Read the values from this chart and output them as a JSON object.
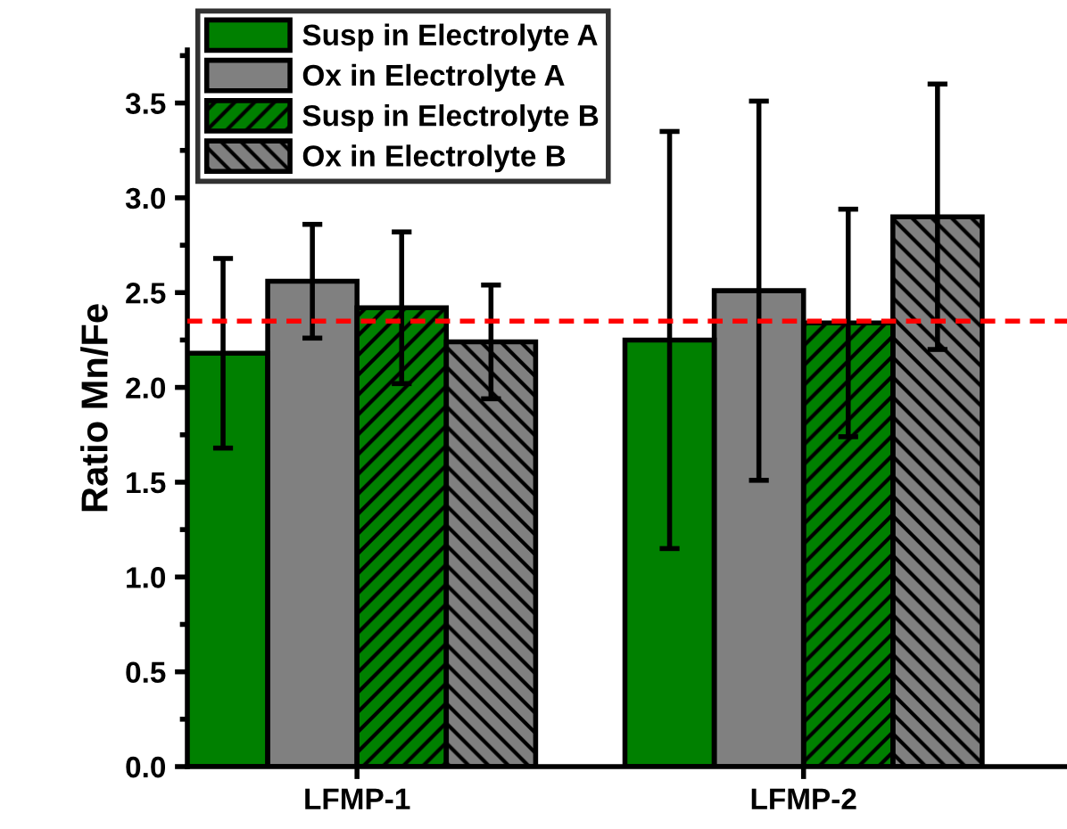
{
  "chart_data": {
    "type": "bar",
    "ylabel": "Ratio Mn/Fe",
    "categories": [
      "LFMP-1",
      "LFMP-2"
    ],
    "series": [
      {
        "name": "Susp in Electrolyte A",
        "color": "#008000",
        "values": [
          2.18,
          2.25
        ],
        "errors": [
          0.5,
          1.1
        ]
      },
      {
        "name": "Ox in Electrolyte A",
        "color": "#808080",
        "values": [
          2.56,
          2.51
        ],
        "errors": [
          0.3,
          1.0
        ]
      },
      {
        "name": "Susp in Electrolyte B",
        "color": "#008000",
        "values": [
          2.42,
          2.34
        ],
        "errors": [
          0.4,
          0.6
        ]
      },
      {
        "name": "Ox in Electrolyte B",
        "color": "#808080",
        "values": [
          2.24,
          2.9
        ],
        "errors": [
          0.3,
          0.7
        ]
      }
    ],
    "ylim": [
      0,
      3.78
    ],
    "yticks": [
      {
        "value": 0,
        "label": "0.0"
      },
      0.5,
      {
        "value": 1,
        "label": "1.0"
      },
      1.5,
      {
        "value": 2,
        "label": "2.0"
      },
      2.5,
      {
        "value": 3,
        "label": "3.0"
      },
      3.5
    ],
    "ref_lines": [
      {
        "axis": "y",
        "value": 2.35,
        "color": "#ff0000",
        "line_style": "dashed"
      }
    ],
    "legend": "top left",
    "grid": false
  }
}
